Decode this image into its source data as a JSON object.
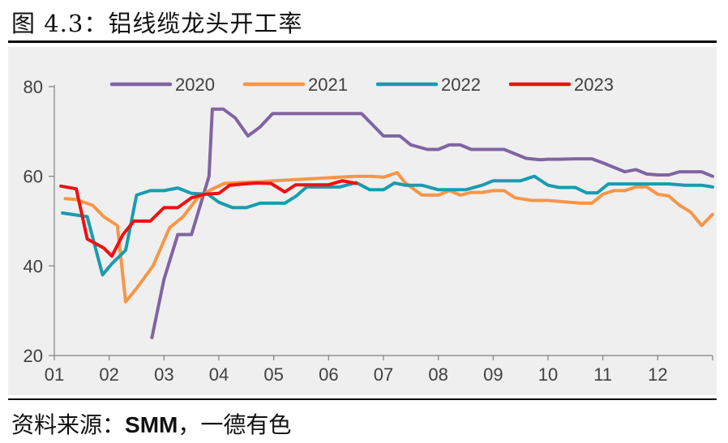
{
  "figure": {
    "title": "图 4.3：铝线缆龙头开工率",
    "source_prefix": "资料来源：",
    "source_org": "SMM",
    "source_suffix": "，一德有色"
  },
  "colors": {
    "2020": "#8064a2",
    "2021": "#f79646",
    "2022": "#1a9bb0",
    "2023": "#ee1111",
    "axis": "#7f7f7f",
    "tick_text": "#404040",
    "plot_bg": "#efefef"
  },
  "chart_data": {
    "type": "line",
    "title": "",
    "xlabel": "",
    "ylabel": "",
    "ylim": [
      20,
      80
    ],
    "yticks": [
      20,
      40,
      60,
      80
    ],
    "xlim": [
      1,
      13
    ],
    "xticks": [
      {
        "value": 1,
        "label": "01"
      },
      {
        "value": 2,
        "label": "02"
      },
      {
        "value": 3,
        "label": "03"
      },
      {
        "value": 4,
        "label": "04"
      },
      {
        "value": 5,
        "label": "05"
      },
      {
        "value": 6,
        "label": "06"
      },
      {
        "value": 7,
        "label": "07"
      },
      {
        "value": 8,
        "label": "08"
      },
      {
        "value": 9,
        "label": "09"
      },
      {
        "value": 10,
        "label": "10"
      },
      {
        "value": 11,
        "label": "11"
      },
      {
        "value": 12,
        "label": "12"
      }
    ],
    "grid": false,
    "legend": "top",
    "series": [
      {
        "name": "2020",
        "x": [
          2.78,
          3.0,
          3.25,
          3.5,
          3.82,
          3.88,
          4.08,
          4.3,
          4.53,
          4.75,
          4.98,
          5.23,
          5.5,
          5.8,
          6.1,
          6.4,
          6.6,
          6.8,
          7.0,
          7.3,
          7.5,
          7.8,
          8.0,
          8.2,
          8.4,
          8.6,
          8.8,
          9.0,
          9.2,
          9.4,
          9.6,
          9.85,
          10.0,
          10.2,
          10.5,
          10.8,
          11.0,
          11.2,
          11.4,
          11.6,
          11.8,
          12.0,
          12.2,
          12.4,
          12.6,
          12.8,
          13.0
        ],
        "values": [
          24,
          37,
          47,
          47,
          60,
          75,
          75,
          73,
          69,
          71,
          74,
          74,
          74,
          74,
          74,
          74,
          74,
          71.5,
          69,
          69,
          67,
          66,
          66,
          67,
          67,
          66,
          66,
          66,
          66,
          65,
          64,
          63.7,
          63.8,
          63.8,
          63.9,
          63.9,
          63,
          62,
          61,
          61.5,
          60.5,
          60.3,
          60.3,
          61,
          61,
          61,
          60
        ]
      },
      {
        "name": "2021",
        "x": [
          1.2,
          1.4,
          1.7,
          1.9,
          2.15,
          2.3,
          2.5,
          2.8,
          3.1,
          3.35,
          3.6,
          3.85,
          4.1,
          4.4,
          4.8,
          5.0,
          5.3,
          5.6,
          5.9,
          6.2,
          6.5,
          6.8,
          7.0,
          7.25,
          7.4,
          7.7,
          8.0,
          8.2,
          8.4,
          8.6,
          8.8,
          9.0,
          9.2,
          9.4,
          9.7,
          10.0,
          10.3,
          10.6,
          10.8,
          11.0,
          11.2,
          11.4,
          11.6,
          11.8,
          12.0,
          12.2,
          12.4,
          12.6,
          12.8,
          13.0
        ],
        "values": [
          55,
          54.8,
          53.5,
          51,
          49,
          32,
          35,
          40,
          48.5,
          51,
          55,
          57,
          58.4,
          58.6,
          58.8,
          59,
          59.2,
          59.4,
          59.6,
          59.8,
          60,
          60,
          59.8,
          60.8,
          58.5,
          55.8,
          55.8,
          56.8,
          55.8,
          56.4,
          56.4,
          56.8,
          56.8,
          55.2,
          54.6,
          54.6,
          54.3,
          54,
          54,
          56,
          56.8,
          56.8,
          57.6,
          57.6,
          56,
          55.6,
          53.5,
          52,
          49,
          51.5
        ]
      },
      {
        "name": "2022",
        "x": [
          1.15,
          1.6,
          1.88,
          2.05,
          2.3,
          2.5,
          2.75,
          3.0,
          3.25,
          3.5,
          3.8,
          4.0,
          4.25,
          4.5,
          4.75,
          5.0,
          5.2,
          5.4,
          5.6,
          5.9,
          6.2,
          6.5,
          6.75,
          7.0,
          7.2,
          7.4,
          7.7,
          8.0,
          8.3,
          8.5,
          8.8,
          9.0,
          9.2,
          9.5,
          9.75,
          10.0,
          10.2,
          10.5,
          10.7,
          10.9,
          11.1,
          11.4,
          11.6,
          11.9,
          12.2,
          12.5,
          12.8,
          13.0
        ],
        "values": [
          51.8,
          51,
          38,
          40.5,
          43.5,
          55.8,
          56.8,
          56.8,
          57.4,
          56.2,
          56,
          54.2,
          53,
          53,
          54,
          54,
          54,
          55.5,
          57.6,
          57.6,
          57.6,
          58.6,
          57,
          57,
          58.5,
          58,
          58,
          57,
          57,
          57,
          58,
          59,
          59,
          59,
          60,
          58,
          57.5,
          57.5,
          56.3,
          56.3,
          58.3,
          58.3,
          58.3,
          58.3,
          58.3,
          58,
          58,
          57.6
        ]
      },
      {
        "name": "2023",
        "x": [
          1.12,
          1.4,
          1.6,
          1.9,
          2.05,
          2.25,
          2.45,
          2.75,
          3.0,
          3.25,
          3.5,
          3.75,
          4.0,
          4.2,
          4.45,
          4.7,
          4.95,
          5.2,
          5.4,
          5.6,
          5.85,
          6.0,
          6.25,
          6.5
        ],
        "values": [
          57.8,
          57.2,
          46,
          44,
          42.2,
          47,
          50,
          50,
          53,
          53,
          55.2,
          56,
          56.2,
          58,
          58.3,
          58.5,
          58.4,
          56.5,
          58.1,
          58.1,
          58.1,
          58.1,
          59,
          58.4
        ]
      }
    ]
  }
}
